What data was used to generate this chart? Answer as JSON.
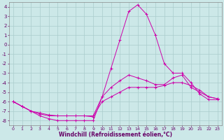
{
  "x": [
    0,
    1,
    2,
    3,
    4,
    5,
    6,
    7,
    8,
    9,
    10,
    11,
    12,
    13,
    14,
    15,
    16,
    17,
    18,
    19,
    20,
    21,
    22,
    23
  ],
  "line1": [
    -6.0,
    -6.5,
    -7.0,
    -7.5,
    -7.8,
    -8.0,
    -8.0,
    -8.0,
    -8.0,
    -8.0,
    -5.5,
    -2.5,
    0.5,
    3.5,
    4.2,
    3.2,
    1.0,
    -2.0,
    -3.0,
    -3.0,
    -4.0,
    -5.2,
    -5.8,
    -5.8
  ],
  "line2": [
    -6.0,
    -6.5,
    -7.0,
    -7.2,
    -7.4,
    -7.5,
    -7.5,
    -7.5,
    -7.5,
    -7.6,
    -6.0,
    -5.5,
    -5.0,
    -4.5,
    -4.5,
    -4.5,
    -4.5,
    -4.3,
    -4.0,
    -4.0,
    -4.3,
    -4.8,
    -5.5,
    -5.7
  ],
  "line3": [
    -6.0,
    -6.5,
    -7.0,
    -7.3,
    -7.5,
    -7.5,
    -7.5,
    -7.5,
    -7.5,
    -7.5,
    -5.5,
    -4.5,
    -3.8,
    -3.2,
    -3.5,
    -3.8,
    -4.2,
    -4.2,
    -3.5,
    -3.2,
    -4.5,
    -5.0,
    -5.5,
    -5.7
  ],
  "line_color": "#cc00aa",
  "bg_color": "#cce8e8",
  "grid_color": "#aacccc",
  "xlabel": "Windchill (Refroidissement éolien,°C)",
  "ylim": [
    -8.5,
    4.5
  ],
  "xlim": [
    -0.5,
    23.5
  ],
  "yticks": [
    4,
    3,
    2,
    1,
    0,
    -1,
    -2,
    -3,
    -4,
    -5,
    -6,
    -7,
    -8
  ],
  "xticks": [
    0,
    1,
    2,
    3,
    4,
    5,
    6,
    7,
    8,
    9,
    10,
    11,
    12,
    13,
    14,
    15,
    16,
    17,
    18,
    19,
    20,
    21,
    22,
    23
  ],
  "xlabel_fontsize": 5.5,
  "tick_fontsize": 5.0
}
